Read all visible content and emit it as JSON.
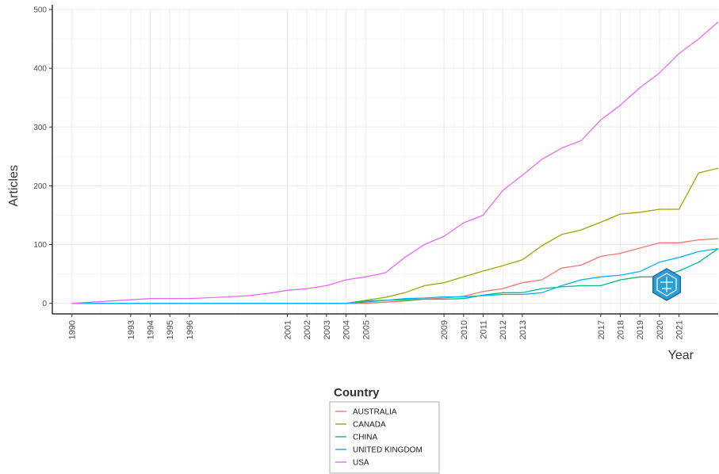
{
  "chart_data": {
    "type": "line",
    "title": "",
    "xlabel": "Year",
    "ylabel": "Articles",
    "xlim": [
      1989,
      2023
    ],
    "ylim": [
      -18,
      500
    ],
    "y_ticks": [
      0,
      100,
      200,
      300,
      400,
      500
    ],
    "x_ticks": [
      1990,
      1993,
      1994,
      1995,
      1996,
      2001,
      2002,
      2003,
      2004,
      2005,
      2009,
      2010,
      2011,
      2012,
      2013,
      2017,
      2018,
      2019,
      2020,
      2021
    ],
    "x_tick_labels": [
      "1990",
      "1993",
      "1994",
      "1995",
      "1996",
      "2001",
      "2002",
      "2003",
      "2004",
      "2005",
      "2009",
      "2010",
      "2011",
      "2012",
      "2013",
      "2017",
      "2018",
      "2019",
      "2020",
      "2021"
    ],
    "grid": true,
    "legend": {
      "title": "Country",
      "position": "bottom"
    },
    "series": [
      {
        "name": "AUSTRALIA",
        "color": "#F8766D",
        "x": [
          1990,
          1994,
          2000,
          2005,
          2006,
          2007,
          2008,
          2009,
          2010,
          2011,
          2012,
          2013,
          2014,
          2015,
          2016,
          2017,
          2018,
          2019,
          2020,
          2021,
          2022,
          2023
        ],
        "values": [
          0,
          0,
          0,
          0,
          2,
          4,
          7,
          9,
          12,
          20,
          25,
          35,
          40,
          60,
          65,
          80,
          85,
          94,
          103,
          103,
          108,
          110
        ]
      },
      {
        "name": "CANADA",
        "color": "#A3A500",
        "x": [
          1990,
          1994,
          2000,
          2004,
          2005,
          2006,
          2007,
          2008,
          2009,
          2010,
          2011,
          2012,
          2013,
          2014,
          2015,
          2016,
          2017,
          2018,
          2019,
          2020,
          2021,
          2022,
          2023
        ],
        "values": [
          0,
          0,
          0,
          0,
          5,
          10,
          18,
          30,
          35,
          45,
          55,
          64,
          74,
          98,
          117,
          125,
          138,
          152,
          155,
          160,
          160,
          222,
          230
        ]
      },
      {
        "name": "CHINA",
        "color": "#00BF7D",
        "x": [
          1990,
          1994,
          2000,
          2004,
          2005,
          2006,
          2007,
          2008,
          2009,
          2010,
          2011,
          2012,
          2013,
          2014,
          2015,
          2016,
          2017,
          2018,
          2019,
          2020,
          2021,
          2022,
          2023
        ],
        "values": [
          0,
          0,
          0,
          0,
          4,
          5,
          6,
          7,
          7,
          8,
          14,
          18,
          18,
          25,
          28,
          30,
          30,
          40,
          45,
          45,
          55,
          70,
          93
        ]
      },
      {
        "name": "UNITED KINGDOM",
        "color": "#00B0F6",
        "x": [
          1990,
          1994,
          2000,
          2004,
          2005,
          2006,
          2007,
          2008,
          2009,
          2010,
          2011,
          2012,
          2013,
          2014,
          2015,
          2016,
          2017,
          2018,
          2019,
          2020,
          2021,
          2022,
          2023
        ],
        "values": [
          0,
          0,
          0,
          0,
          2,
          5,
          8,
          9,
          11,
          11,
          13,
          15,
          15,
          18,
          30,
          40,
          45,
          48,
          54,
          70,
          78,
          88,
          93
        ]
      },
      {
        "name": "USA",
        "color": "#E76BF3",
        "x": [
          1990,
          1992,
          1993,
          1994,
          1996,
          1998,
          1999,
          2000,
          2001,
          2002,
          2003,
          2004,
          2005,
          2006,
          2007,
          2008,
          2009,
          2010,
          2011,
          2012,
          2013,
          2014,
          2015,
          2016,
          2017,
          2018,
          2019,
          2020,
          2021,
          2022,
          2023
        ],
        "values": [
          0,
          4,
          6,
          8,
          8,
          11,
          13,
          17,
          22,
          25,
          30,
          40,
          45,
          52,
          78,
          100,
          114,
          137,
          150,
          192,
          218,
          245,
          264,
          277,
          312,
          337,
          367,
          392,
          425,
          450,
          479
        ]
      }
    ]
  }
}
